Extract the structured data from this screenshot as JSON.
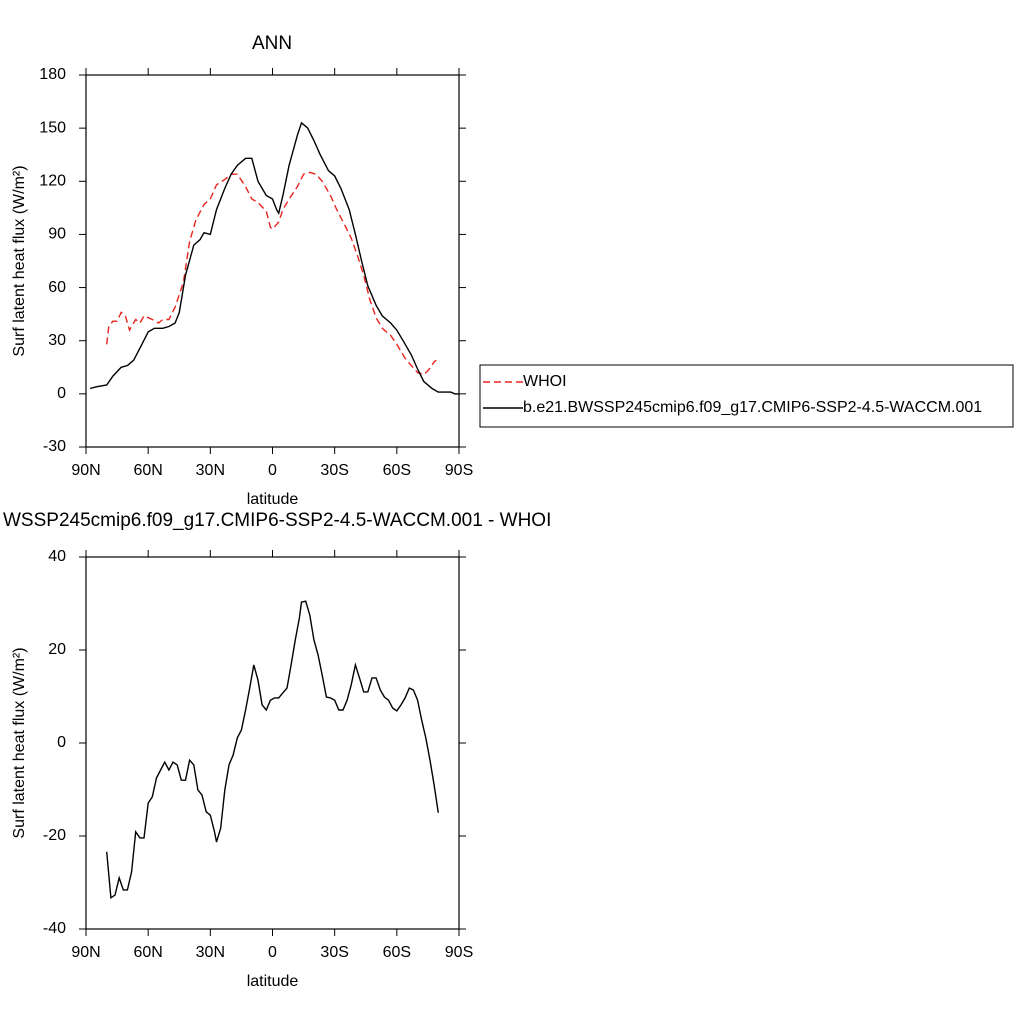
{
  "chart_data": [
    {
      "type": "line",
      "title": "ANN",
      "xlabel": "latitude",
      "ylabel": "Surf latent heat flux (W/m²)",
      "xlim": [
        90,
        -90
      ],
      "xticks": [
        {
          "value": 90,
          "label": "90N"
        },
        {
          "value": 60,
          "label": "60N"
        },
        {
          "value": 30,
          "label": "30N"
        },
        0,
        {
          "value": -30,
          "label": "30S"
        },
        {
          "value": -60,
          "label": "60S"
        },
        {
          "value": -90,
          "label": "90S"
        }
      ],
      "ylim": [
        -30,
        180
      ],
      "yticks": [
        -30,
        0,
        30,
        60,
        90,
        120,
        150,
        180
      ],
      "legend": "right",
      "series": [
        {
          "name": "WHOI",
          "color": "#e8251f",
          "line_style": "dashed",
          "x": [
            80,
            79,
            77,
            75,
            73,
            71,
            69,
            66,
            64,
            62,
            58,
            55,
            53,
            50,
            47,
            43,
            40,
            37,
            33,
            30,
            27,
            23,
            20,
            17,
            13,
            10,
            7,
            3,
            1,
            0,
            -3,
            -5,
            -8,
            -12,
            -15,
            -18,
            -21,
            -24,
            -28,
            -31,
            -35,
            -38,
            -41,
            -44,
            -47,
            -50,
            -53,
            -57,
            -60,
            -64,
            -67,
            -70,
            -73,
            -75,
            -78,
            -79
          ],
          "values": [
            28,
            38,
            41,
            41,
            46,
            44,
            36,
            42,
            40,
            44,
            42,
            40,
            42,
            42,
            49,
            63,
            86,
            98,
            107,
            110,
            118,
            121,
            124,
            124,
            117,
            110,
            108,
            103,
            94,
            93,
            97,
            104,
            110,
            117,
            124,
            125,
            124,
            120,
            112,
            104,
            95,
            88,
            78,
            67,
            53,
            43,
            37,
            33,
            28,
            20,
            16,
            12,
            11,
            13,
            18,
            19
          ]
        },
        {
          "name": "b.e21.BWSSP245cmip6.f09_g17.CMIP6-SSP2-4.5-WACCM.001",
          "color": "#000000",
          "line_style": "solid",
          "x": [
            88,
            85,
            80,
            77,
            73,
            70,
            67,
            63,
            60,
            57,
            53,
            50,
            47,
            45,
            42,
            38,
            35,
            33,
            30,
            27,
            23,
            20,
            17,
            13,
            10,
            7,
            3,
            0,
            -2,
            -3,
            -5,
            -8,
            -12,
            -14,
            -17,
            -20,
            -23,
            -27,
            -30,
            -33,
            -37,
            -40,
            -43,
            -46,
            -50,
            -53,
            -57,
            -60,
            -63,
            -67,
            -70,
            -73,
            -77,
            -80,
            -83,
            -86,
            -88,
            -90
          ],
          "values": [
            3,
            4,
            5,
            10,
            15,
            16,
            19,
            28,
            35,
            37,
            37,
            38,
            40,
            46,
            67,
            84,
            87,
            91,
            90,
            104,
            116,
            124,
            129,
            133,
            133,
            120,
            112,
            110,
            104,
            102,
            112,
            129,
            146,
            153,
            150,
            143,
            135,
            126,
            123,
            116,
            104,
            90,
            75,
            61,
            50,
            44,
            40,
            36,
            30,
            22,
            14,
            7,
            3,
            1,
            1,
            1,
            0,
            0
          ]
        }
      ]
    },
    {
      "type": "line",
      "title": "WSSP245cmip6.f09_g17.CMIP6-SSP2-4.5-WACCM.001 - WHOI",
      "xlabel": "latitude",
      "ylabel": "Surf latent heat flux (W/m²)",
      "xlim": [
        90,
        -90
      ],
      "xticks": [
        {
          "value": 90,
          "label": "90N"
        },
        {
          "value": 60,
          "label": "60N"
        },
        {
          "value": 30,
          "label": "30N"
        },
        0,
        {
          "value": -30,
          "label": "30S"
        },
        {
          "value": -60,
          "label": "60S"
        },
        {
          "value": -90,
          "label": "90S"
        }
      ],
      "ylim": [
        -40,
        40
      ],
      "yticks": [
        -40,
        -20,
        0,
        20,
        40
      ],
      "series": [
        {
          "color": "#000000",
          "line_style": "solid",
          "x": [
            80,
            78,
            76,
            74,
            72,
            70,
            68,
            66,
            64,
            62,
            60,
            58,
            56,
            54,
            52,
            50,
            48,
            46,
            44,
            42,
            40,
            38,
            36,
            34,
            32,
            30,
            28,
            27,
            25,
            23,
            21,
            19,
            17,
            15,
            13,
            11,
            9,
            7,
            5,
            3,
            1,
            -1,
            -3,
            -5,
            -7,
            -9,
            -11,
            -13,
            -14,
            -16,
            -18,
            -20,
            -22,
            -24,
            -26,
            -28,
            -30,
            -32,
            -34,
            -36,
            -38,
            -40,
            -42,
            -44,
            -46,
            -48,
            -50,
            -52,
            -54,
            -56,
            -58,
            -60,
            -62,
            -64,
            -66,
            -68,
            -70,
            -72,
            -74,
            -76,
            -78,
            -80
          ],
          "values": [
            -23.4,
            -33.3,
            -32.7,
            -29,
            -31.6,
            -31.6,
            -27.7,
            -19.1,
            -20.4,
            -20.4,
            -12.9,
            -11.6,
            -7.5,
            -5.8,
            -4.1,
            -5.8,
            -4.1,
            -4.7,
            -8,
            -8,
            -3.7,
            -4.7,
            -10.1,
            -11.2,
            -14.8,
            -15.5,
            -19.1,
            -21.3,
            -18.3,
            -10.1,
            -4.7,
            -2.6,
            1.1,
            2.8,
            7.1,
            11.8,
            16.8,
            13.5,
            8.2,
            7.1,
            9.2,
            9.7,
            9.7,
            10.8,
            11.8,
            16.8,
            22.2,
            26.9,
            30.3,
            30.5,
            27.5,
            22.2,
            18.9,
            14.6,
            9.9,
            9.7,
            9.2,
            7.1,
            7.1,
            9.2,
            12.5,
            16.8,
            14,
            11,
            11,
            14,
            14,
            11.4,
            9.9,
            9.2,
            7.5,
            6.9,
            8.2,
            9.7,
            11.8,
            11.4,
            9.2,
            4.9,
            1.1,
            -3.7,
            -9,
            -15
          ]
        }
      ]
    }
  ]
}
